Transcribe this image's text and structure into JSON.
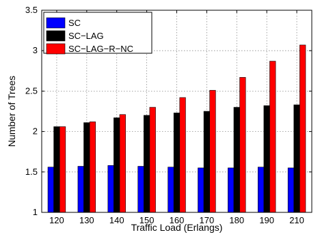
{
  "chart_data": {
    "type": "bar",
    "title": "",
    "xlabel": "Traffic Load (Erlangs)",
    "ylabel": "Number of Trees",
    "categories": [
      "120",
      "130",
      "140",
      "150",
      "160",
      "170",
      "180",
      "190",
      "210"
    ],
    "ylim": [
      1,
      3.5
    ],
    "yticks": [
      1,
      1.5,
      2,
      2.5,
      3,
      3.5
    ],
    "grid": true,
    "legend_position": "top-left",
    "series": [
      {
        "name": "SC",
        "color": "#0000ff",
        "values": [
          1.56,
          1.57,
          1.58,
          1.57,
          1.56,
          1.55,
          1.55,
          1.56,
          1.55
        ]
      },
      {
        "name": "SC−LAG",
        "color": "#000000",
        "values": [
          2.06,
          2.11,
          2.17,
          2.2,
          2.23,
          2.25,
          2.3,
          2.32,
          2.33
        ]
      },
      {
        "name": "SC−LAG−R−NC",
        "color": "#ff0000",
        "values": [
          2.06,
          2.12,
          2.21,
          2.3,
          2.42,
          2.51,
          2.67,
          2.87,
          3.07
        ]
      }
    ]
  }
}
